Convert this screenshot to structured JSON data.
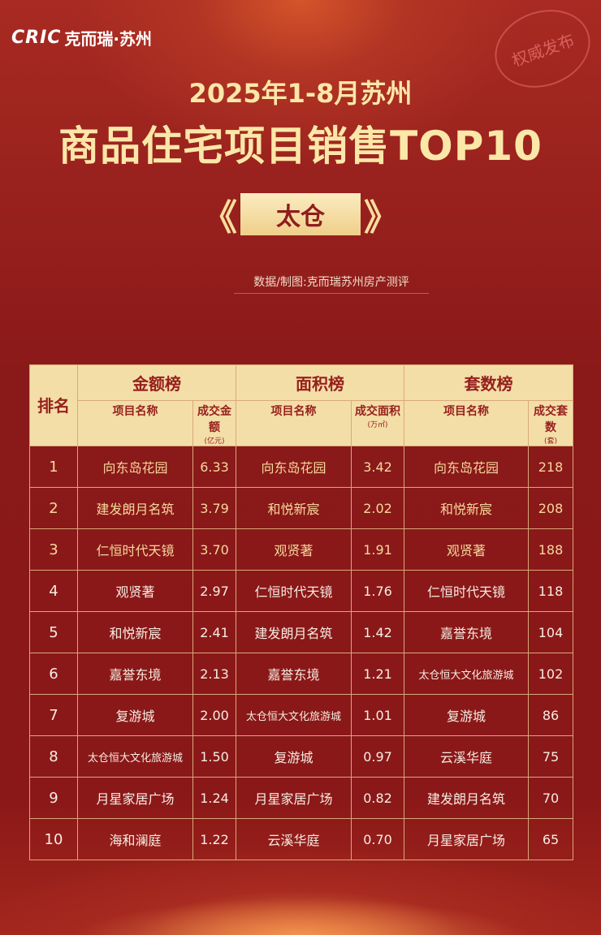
{
  "brand": {
    "logo": "CRIC",
    "name": "克而瑞·苏州",
    "stamp": "权威发布"
  },
  "title": {
    "line1": "2025年1-8月苏州",
    "line2": "商品住宅项目销售TOP10",
    "region": "太仓",
    "bracket_left": "《",
    "bracket_right": "》"
  },
  "source": "数据/制图:克而瑞苏州房产测评",
  "colors": {
    "background": "#8e1a1a",
    "header_bg": "#f4dea8",
    "header_text": "#96201d",
    "top3_text": "#f5d89c",
    "text": "#f6ece2"
  },
  "table": {
    "rank_header": "排名",
    "groups": [
      "金额榜",
      "面积榜",
      "套数榜"
    ],
    "subheaders": [
      {
        "name": "项目名称",
        "value": "成交金额",
        "unit": "(亿元)"
      },
      {
        "name": "项目名称",
        "value": "成交面积",
        "unit": "(万㎡)"
      },
      {
        "name": "项目名称",
        "value": "成交套数",
        "unit": "(套)"
      }
    ],
    "rows": [
      {
        "rank": "1",
        "a_name": "向东岛花园",
        "a_val": "6.33",
        "b_name": "向东岛花园",
        "b_val": "3.42",
        "c_name": "向东岛花园",
        "c_val": "218"
      },
      {
        "rank": "2",
        "a_name": "建发朗月名筑",
        "a_val": "3.79",
        "b_name": "和悦新宸",
        "b_val": "2.02",
        "c_name": "和悦新宸",
        "c_val": "208"
      },
      {
        "rank": "3",
        "a_name": "仁恒时代天镜",
        "a_val": "3.70",
        "b_name": "观贤著",
        "b_val": "1.91",
        "c_name": "观贤著",
        "c_val": "188"
      },
      {
        "rank": "4",
        "a_name": "观贤著",
        "a_val": "2.97",
        "b_name": "仁恒时代天镜",
        "b_val": "1.76",
        "c_name": "仁恒时代天镜",
        "c_val": "118"
      },
      {
        "rank": "5",
        "a_name": "和悦新宸",
        "a_val": "2.41",
        "b_name": "建发朗月名筑",
        "b_val": "1.42",
        "c_name": "嘉誉东境",
        "c_val": "104"
      },
      {
        "rank": "6",
        "a_name": "嘉誉东境",
        "a_val": "2.13",
        "b_name": "嘉誉东境",
        "b_val": "1.21",
        "c_name": "太仓恒大文化旅游城",
        "c_val": "102"
      },
      {
        "rank": "7",
        "a_name": "复游城",
        "a_val": "2.00",
        "b_name": "太仓恒大文化旅游城",
        "b_val": "1.01",
        "c_name": "复游城",
        "c_val": "86"
      },
      {
        "rank": "8",
        "a_name": "太仓恒大文化旅游城",
        "a_val": "1.50",
        "b_name": "复游城",
        "b_val": "0.97",
        "c_name": "云溪华庭",
        "c_val": "75"
      },
      {
        "rank": "9",
        "a_name": "月星家居广场",
        "a_val": "1.24",
        "b_name": "月星家居广场",
        "b_val": "0.82",
        "c_name": "建发朗月名筑",
        "c_val": "70"
      },
      {
        "rank": "10",
        "a_name": "海和澜庭",
        "a_val": "1.22",
        "b_name": "云溪华庭",
        "b_val": "0.70",
        "c_name": "月星家居广场",
        "c_val": "65"
      }
    ]
  }
}
